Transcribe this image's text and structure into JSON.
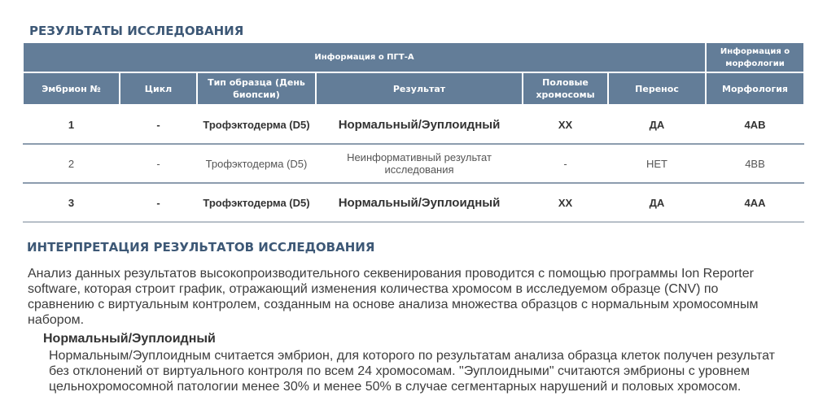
{
  "section1_title": "РЕЗУЛЬТАТЫ ИССЛЕДОВАНИЯ",
  "table": {
    "group_headers": [
      "Информация о ПГТ-А",
      "Информация о морфологии"
    ],
    "columns": [
      "Эмбрион №",
      "Цикл",
      "Тип образца (День биопсии)",
      "Результат",
      "Половые хромосомы",
      "Перенос",
      "Морфология"
    ],
    "rows": [
      {
        "bold": true,
        "cells": [
          "1",
          "-",
          "Трофэктодерма (D5)",
          "Нормальный/Эуплоидный",
          "XX",
          "ДА",
          "4AB"
        ]
      },
      {
        "bold": false,
        "cells": [
          "2",
          "-",
          "Трофэктодерма (D5)",
          "Неинформативный результат исследования",
          "-",
          "НЕТ",
          "4BB"
        ]
      },
      {
        "bold": true,
        "cells": [
          "3",
          "-",
          "Трофэктодерма (D5)",
          "Нормальный/Эуплоидный",
          "XX",
          "ДА",
          "4AA"
        ]
      }
    ]
  },
  "section2_title": "ИНТЕРПРЕТАЦИЯ РЕЗУЛЬТАТОВ ИССЛЕДОВАНИЯ",
  "intro": "Анализ данных результатов высокопроизводительного секвенирования проводится с помощью программы Ion Reporter software, которая строит график, отражающий изменения количества хромосом в исследуемом образце (CNV) по сравнению с виртуальным контролем, созданным на основе анализа множества образцов с нормальным хромосомным набором.",
  "subsection_title": "Нормальный/Эуплоидный",
  "subsection_text": "Нормальным/Эуплоидным считается эмбрион, для которого по результатам анализа образца клеток получен результат без отклонений от виртуального контроля по всем 24 хромосомам. \"Эуплоидными\" считаются эмбрионы с уровнем цельнохромосомной патологии менее 30% и менее 50% в случае сегментарных нарушений и половых хромосом."
}
